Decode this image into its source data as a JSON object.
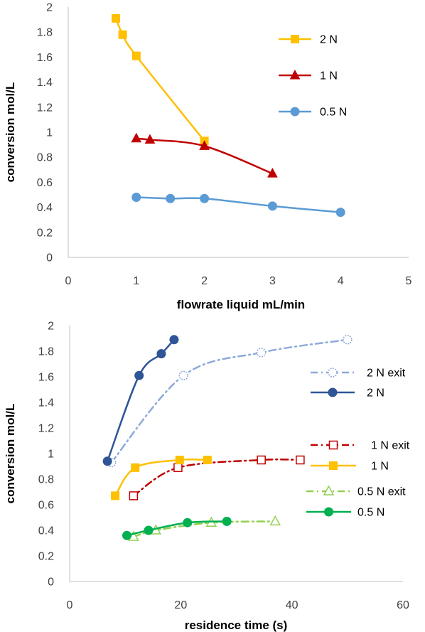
{
  "chart_data": [
    {
      "type": "scatter",
      "xlabel": "flowrate liquid  mL/min",
      "ylabel": "conversion  mol/L",
      "xlim": [
        0,
        5
      ],
      "ylim": [
        0,
        2
      ],
      "xticks": [
        "0",
        "1",
        "2",
        "3",
        "4",
        "5"
      ],
      "yticks": [
        "0",
        "0.2",
        "0.4",
        "0.6",
        "0.8",
        "1",
        "1.2",
        "1.4",
        "1.6",
        "1.8",
        "2"
      ],
      "grid": false,
      "legend_position": "right",
      "series": [
        {
          "name": "2 N",
          "color": "#FFC000",
          "marker": "square",
          "line": "smooth-solid",
          "points": [
            [
              0.7,
              1.91
            ],
            [
              0.8,
              1.78
            ],
            [
              1.0,
              1.61
            ],
            [
              2.0,
              0.93
            ]
          ]
        },
        {
          "name": "1 N",
          "color": "#C00000",
          "marker": "triangle",
          "line": "smooth-solid",
          "points": [
            [
              1.0,
              0.95
            ],
            [
              1.2,
              0.94
            ],
            [
              2.0,
              0.89
            ],
            [
              3.0,
              0.67
            ]
          ]
        },
        {
          "name": "0.5 N",
          "color": "#5B9BD5",
          "marker": "circle",
          "line": "smooth-solid",
          "points": [
            [
              1.0,
              0.48
            ],
            [
              1.5,
              0.47
            ],
            [
              2.0,
              0.47
            ],
            [
              3.0,
              0.41
            ],
            [
              4.0,
              0.36
            ]
          ]
        }
      ]
    },
    {
      "type": "scatter",
      "xlabel": "residence time (s)",
      "ylabel": "conversion  mol/L",
      "xlim": [
        0,
        60
      ],
      "ylim": [
        0,
        2
      ],
      "xticks": [
        "0",
        "20",
        "40",
        "60"
      ],
      "yticks": [
        "0",
        "0.2",
        "0.4",
        "0.6",
        "0.8",
        "1",
        "1.2",
        "1.4",
        "1.6",
        "1.8",
        "2"
      ],
      "grid": false,
      "legend_position": "right",
      "series": [
        {
          "name": "2 N exit",
          "color": "#8EA9DB",
          "marker": "circle-open-dotted",
          "line": "dash-dot",
          "points": [
            [
              7.5,
              0.93
            ],
            [
              20.5,
              1.61
            ],
            [
              34.5,
              1.79
            ],
            [
              50.0,
              1.89
            ]
          ]
        },
        {
          "name": "2 N",
          "color": "#2F5597",
          "marker": "circle",
          "line": "smooth-solid",
          "points": [
            [
              6.8,
              0.94
            ],
            [
              12.5,
              1.61
            ],
            [
              16.5,
              1.78
            ],
            [
              18.8,
              1.89
            ]
          ]
        },
        {
          "name": "1 N exit",
          "color": "#C00000",
          "marker": "square-open",
          "line": "dash-dot",
          "points": [
            [
              11.5,
              0.67
            ],
            [
              19.5,
              0.89
            ],
            [
              34.5,
              0.95
            ],
            [
              41.5,
              0.95
            ]
          ]
        },
        {
          "name": "1 N",
          "color": "#FFC000",
          "marker": "square",
          "line": "smooth-solid",
          "points": [
            [
              8.2,
              0.67
            ],
            [
              11.8,
              0.89
            ],
            [
              19.8,
              0.95
            ],
            [
              24.8,
              0.95
            ]
          ]
        },
        {
          "name": "0.5 N exit",
          "color": "#92D050",
          "marker": "triangle-open",
          "line": "dash-dot",
          "points": [
            [
              11.5,
              0.35
            ],
            [
              15.5,
              0.4
            ],
            [
              25.5,
              0.46
            ],
            [
              37.0,
              0.47
            ]
          ]
        },
        {
          "name": "0.5 N",
          "color": "#00B050",
          "marker": "circle",
          "line": "smooth-solid",
          "points": [
            [
              10.3,
              0.36
            ],
            [
              14.2,
              0.4
            ],
            [
              21.2,
              0.46
            ],
            [
              28.3,
              0.47
            ]
          ]
        }
      ]
    }
  ]
}
